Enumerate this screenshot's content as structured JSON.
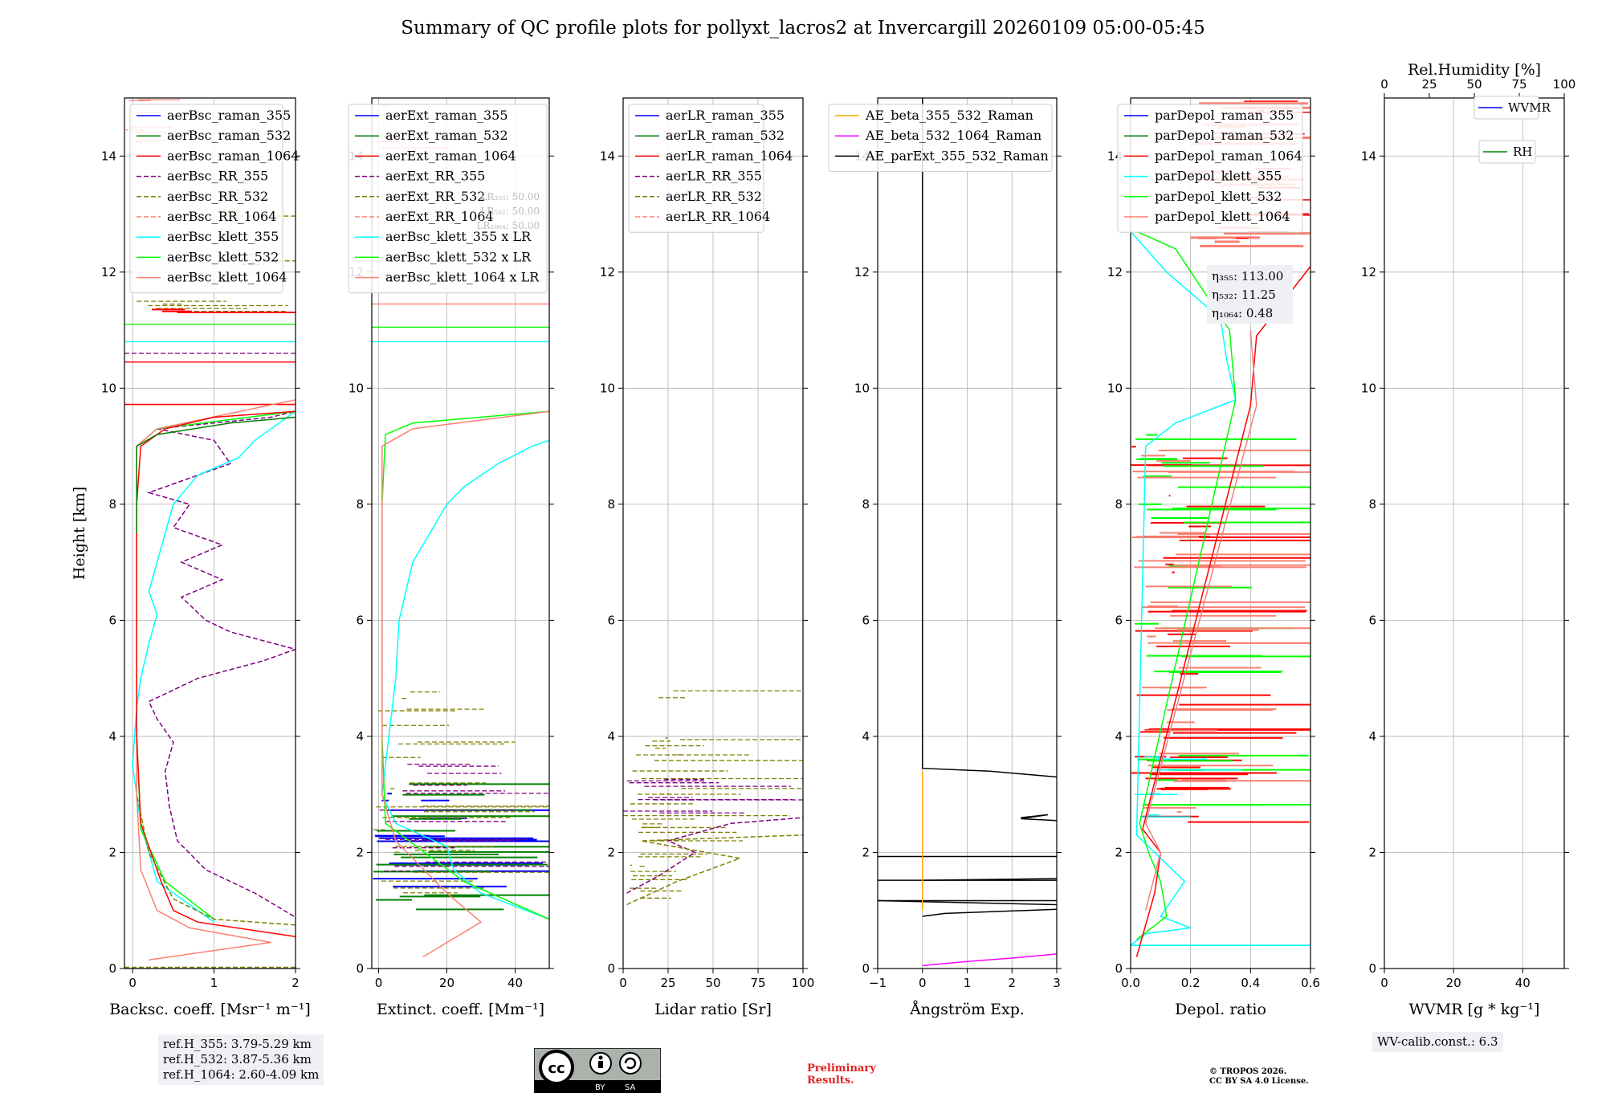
{
  "title": "Summary of QC profile plots for pollyxt_lacros2 at Invercargill 20260109 05:00-05:45",
  "colors": {
    "blue": "#0000ff",
    "green": "#008000",
    "red": "#ff0000",
    "purple": "#800080",
    "olive": "#808000",
    "salmon": "#fa8072",
    "cyan": "#00ffff",
    "lime": "#00ff00",
    "lightcoral": "#f08080",
    "orange": "#ffa500",
    "magenta": "#ff00ff",
    "black": "#000000"
  },
  "chart_data": [
    {
      "type": "line",
      "id": "bsc",
      "ylabel": "Height [km]",
      "xlabel": "Backsc. coeff. [Msr⁻¹ m⁻¹]",
      "xlim": [
        -0.1,
        2
      ],
      "ylim": [
        0,
        15
      ],
      "xticks": [
        "0",
        "1",
        "2"
      ],
      "yticks": [
        "0",
        "2",
        "4",
        "6",
        "8",
        "10",
        "12",
        "14"
      ],
      "legend": [
        "aerBsc_raman_355",
        "aerBsc_raman_532",
        "aerBsc_raman_1064",
        "aerBsc_RR_355",
        "aerBsc_RR_532",
        "aerBsc_RR_1064",
        "aerBsc_klett_355",
        "aerBsc_klett_532",
        "aerBsc_klett_1064"
      ],
      "series": [
        {
          "name": "aerBsc_RR_355",
          "color": "purple",
          "dash": true,
          "points": [
            [
              1.98,
              0.9
            ],
            [
              1.5,
              1.3
            ],
            [
              0.9,
              1.7
            ],
            [
              0.55,
              2.2
            ],
            [
              0.45,
              2.8
            ],
            [
              0.4,
              3.4
            ],
            [
              0.5,
              3.9
            ],
            [
              0.3,
              4.3
            ],
            [
              0.2,
              4.6
            ],
            [
              0.8,
              5
            ],
            [
              1.6,
              5.3
            ],
            [
              2,
              5.5
            ],
            [
              1.2,
              5.8
            ],
            [
              0.9,
              6
            ],
            [
              0.6,
              6.4
            ],
            [
              1.1,
              6.7
            ],
            [
              0.6,
              7
            ],
            [
              1.1,
              7.3
            ],
            [
              0.5,
              7.6
            ],
            [
              0.7,
              8
            ],
            [
              0.2,
              8.2
            ],
            [
              1.2,
              8.7
            ],
            [
              1.0,
              9.1
            ],
            [
              0.3,
              9.3
            ],
            [
              1.7,
              9.5
            ],
            [
              2,
              9.6
            ]
          ]
        },
        {
          "name": "aerBsc_klett_355",
          "color": "cyan",
          "points": [
            [
              1.0,
              0.8
            ],
            [
              0.3,
              1.5
            ],
            [
              0.1,
              2.5
            ],
            [
              0.0,
              3.5
            ],
            [
              0.05,
              4.5
            ],
            [
              0.1,
              5.0
            ],
            [
              0.2,
              5.6
            ],
            [
              0.3,
              6.1
            ],
            [
              0.2,
              6.5
            ],
            [
              0.3,
              7
            ],
            [
              0.4,
              7.5
            ],
            [
              0.5,
              8
            ],
            [
              0.8,
              8.5
            ],
            [
              1.3,
              8.8
            ],
            [
              1.5,
              9.1
            ],
            [
              1.8,
              9.4
            ],
            [
              2,
              9.6
            ]
          ]
        },
        {
          "name": "aerBsc_klett_532",
          "color": "lime",
          "points": [
            [
              1.0,
              0.85
            ],
            [
              0.4,
              1.5
            ],
            [
              0.1,
              2.4
            ],
            [
              0.05,
              4
            ],
            [
              0.05,
              7
            ],
            [
              0.05,
              9
            ],
            [
              0.3,
              9.3
            ],
            [
              2,
              9.6
            ]
          ]
        },
        {
          "name": "aerBsc_klett_1064",
          "color": "salmon",
          "points": [
            [
              0.2,
              0.15
            ],
            [
              1.7,
              0.45
            ],
            [
              0.7,
              0.7
            ],
            [
              0.3,
              1.0
            ],
            [
              0.1,
              1.7
            ],
            [
              0.05,
              3
            ],
            [
              0.05,
              9
            ],
            [
              0.3,
              9.3
            ],
            [
              2,
              9.8
            ]
          ]
        },
        {
          "name": "aerBsc_raman_1064",
          "color": "red",
          "points": [
            [
              2,
              0.55
            ],
            [
              0.8,
              0.8
            ],
            [
              0.5,
              1.0
            ],
            [
              0.35,
              1.5
            ],
            [
              0.1,
              2.5
            ],
            [
              0.05,
              4
            ],
            [
              0.05,
              8
            ],
            [
              0.1,
              9
            ],
            [
              0.4,
              9.3
            ],
            [
              1.0,
              9.5
            ],
            [
              2,
              9.6
            ]
          ]
        },
        {
          "name": "aerBsc_raman_532",
          "color": "green",
          "points": [
            [
              0.05,
              7.5
            ],
            [
              0.05,
              9
            ],
            [
              0.3,
              9.2
            ],
            [
              1.2,
              9.4
            ],
            [
              2,
              9.5
            ]
          ]
        },
        {
          "name": "aerBsc_RR_532",
          "color": "olive",
          "dash": true,
          "points": [
            [
              2,
              0.75
            ],
            [
              1.0,
              0.85
            ],
            [
              0.5,
              1.2
            ],
            [
              0.2,
              2
            ],
            [
              0.05,
              3
            ]
          ]
        }
      ]
    },
    {
      "type": "line",
      "id": "ext",
      "xlabel": "Extinct. coeff. [Mm⁻¹]",
      "xlim": [
        -2,
        50
      ],
      "ylim": [
        0,
        15
      ],
      "xticks": [
        "0",
        "20",
        "40"
      ],
      "yticks": [
        "0",
        "2",
        "4",
        "6",
        "8",
        "10",
        "12",
        "14"
      ],
      "legend": [
        "aerExt_raman_355",
        "aerExt_raman_532",
        "aerExt_raman_1064",
        "aerExt_RR_355",
        "aerExt_RR_532",
        "aerExt_RR_1064",
        "aerBsc_klett_355 x LR",
        "aerBsc_klett_532 x LR",
        "aerBsc_klett_1064 x LR"
      ],
      "lr_values": [
        "LR₃₅₅: 50.00",
        "LR₅₃₂: 50.00",
        "LR₁₀₆₄: 50.00"
      ],
      "series": [
        {
          "name": "aerBsc_klett_355 x LR",
          "color": "cyan",
          "points": [
            [
              50,
              0.85
            ],
            [
              30,
              1.3
            ],
            [
              22,
              1.7
            ],
            [
              20,
              2.1
            ],
            [
              5,
              2.5
            ],
            [
              1,
              3
            ],
            [
              3,
              4
            ],
            [
              5,
              5
            ],
            [
              6,
              6
            ],
            [
              10,
              7
            ],
            [
              15,
              7.5
            ],
            [
              20,
              8
            ],
            [
              25,
              8.3
            ],
            [
              35,
              8.7
            ],
            [
              45,
              9
            ],
            [
              50,
              9.1
            ]
          ]
        },
        {
          "name": "aerBsc_klett_532 x LR",
          "color": "lime",
          "points": [
            [
              50,
              0.85
            ],
            [
              25,
              1.5
            ],
            [
              2,
              2.5
            ],
            [
              1,
              4
            ],
            [
              1,
              8
            ],
            [
              2,
              9.2
            ],
            [
              10,
              9.4
            ],
            [
              50,
              9.6
            ]
          ]
        },
        {
          "name": "aerBsc_klett_1064 x LR",
          "color": "salmon",
          "points": [
            [
              13,
              0.2
            ],
            [
              30,
              0.8
            ],
            [
              20,
              1.3
            ],
            [
              5,
              2.2
            ],
            [
              1,
              3
            ],
            [
              1,
              9
            ],
            [
              10,
              9.3
            ],
            [
              50,
              9.6
            ]
          ]
        }
      ]
    },
    {
      "type": "line",
      "id": "lr",
      "xlabel": "Lidar ratio [Sr]",
      "xlim": [
        0,
        100
      ],
      "ylim": [
        0,
        15
      ],
      "xticks": [
        "0",
        "25",
        "50",
        "75",
        "100"
      ],
      "yticks": [
        "0",
        "2",
        "4",
        "6",
        "8",
        "10",
        "12",
        "14"
      ],
      "legend": [
        "aerLR_raman_355",
        "aerLR_raman_532",
        "aerLR_raman_1064",
        "aerLR_RR_355",
        "aerLR_RR_532",
        "aerLR_RR_1064"
      ],
      "series": [
        {
          "name": "aerLR_RR_355",
          "color": "purple",
          "dash": true,
          "points": [
            [
              2,
              1.3
            ],
            [
              20,
              1.6
            ],
            [
              40,
              2.0
            ],
            [
              25,
              2.2
            ],
            [
              60,
              2.5
            ],
            [
              100,
              2.6
            ]
          ]
        },
        {
          "name": "aerLR_RR_532",
          "color": "olive",
          "dash": true,
          "points": [
            [
              2,
              1.1
            ],
            [
              30,
              1.5
            ],
            [
              65,
              1.9
            ],
            [
              10,
              2.2
            ],
            [
              100,
              2.3
            ]
          ]
        }
      ]
    },
    {
      "type": "line",
      "id": "ae",
      "xlabel": "Ångström Exp.",
      "xlim": [
        -1,
        3
      ],
      "ylim": [
        0,
        15
      ],
      "xticks": [
        "−1",
        "0",
        "1",
        "2",
        "3"
      ],
      "yticks": [
        "0",
        "2",
        "4",
        "6",
        "8",
        "10",
        "12",
        "14"
      ],
      "legend": [
        "AE_beta_355_532_Raman",
        "AE_beta_532_1064_Raman",
        "AE_parExt_355_532_Raman"
      ],
      "series": [
        {
          "name": "AE_beta_355_532_Raman",
          "color": "orange",
          "points": [
            [
              0,
              1.0
            ],
            [
              0,
              3.4
            ]
          ]
        },
        {
          "name": "AE_beta_532_1064_Raman",
          "color": "magenta",
          "points": [
            [
              0,
              0.05
            ],
            [
              1,
              0.12
            ],
            [
              2,
              0.18
            ],
            [
              3,
              0.25
            ]
          ]
        },
        {
          "name": "AE_parExt_355_532_Raman",
          "color": "black",
          "points": [
            [
              0,
              15
            ],
            [
              0,
              3.45
            ],
            [
              1.5,
              3.4
            ],
            [
              3,
              3.3
            ]
          ]
        }
      ]
    },
    {
      "type": "line",
      "id": "depol",
      "xlabel": "Depol. ratio",
      "xlim": [
        0,
        0.6
      ],
      "ylim": [
        0,
        15
      ],
      "xticks": [
        "0.0",
        "0.2",
        "0.4",
        "0.6"
      ],
      "yticks": [
        "0",
        "2",
        "4",
        "6",
        "8",
        "10",
        "12",
        "14"
      ],
      "legend": [
        "parDepol_raman_355",
        "parDepol_raman_532",
        "parDepol_raman_1064",
        "parDepol_klett_355",
        "parDepol_klett_532",
        "parDepol_klett_1064"
      ],
      "eta": [
        "η₃₅₅: 113.00",
        "η₅₃₂: 11.25",
        "η₁₀₆₄: 0.48"
      ],
      "series": [
        {
          "name": "parDepol_klett_355",
          "color": "cyan",
          "points": [
            [
              0.6,
              0.4
            ],
            [
              0.0,
              0.4
            ],
            [
              0.05,
              0.6
            ],
            [
              0.2,
              0.7
            ],
            [
              0.1,
              0.9
            ],
            [
              0.18,
              1.5
            ],
            [
              0.1,
              1.9
            ],
            [
              0.02,
              2.3
            ],
            [
              0.05,
              9
            ],
            [
              0.15,
              9.4
            ],
            [
              0.35,
              9.8
            ],
            [
              0.32,
              10.5
            ],
            [
              0.3,
              11.2
            ],
            [
              0.12,
              12
            ],
            [
              0.0,
              12.7
            ]
          ]
        },
        {
          "name": "parDepol_klett_532",
          "color": "lime",
          "points": [
            [
              0.02,
              0.5
            ],
            [
              0.12,
              0.9
            ],
            [
              0.1,
              1.5
            ],
            [
              0.06,
              2.0
            ],
            [
              0.03,
              2.5
            ],
            [
              0.35,
              9.8
            ],
            [
              0.33,
              11
            ],
            [
              0.15,
              12.4
            ],
            [
              0.02,
              12.7
            ]
          ]
        },
        {
          "name": "parDepol_raman_1064",
          "color": "red",
          "points": [
            [
              0.02,
              0.2
            ],
            [
              0.08,
              1.3
            ],
            [
              0.1,
              2.0
            ],
            [
              0.04,
              2.4
            ],
            [
              0.4,
              9.7
            ],
            [
              0.42,
              10.9
            ],
            [
              0.6,
              12.1
            ]
          ]
        },
        {
          "name": "parDepol_klett_1064",
          "color": "lightcoral",
          "points": [
            [
              0.05,
              1.0
            ],
            [
              0.1,
              2.0
            ],
            [
              0.05,
              2.5
            ],
            [
              0.42,
              9.7
            ],
            [
              0.4,
              11
            ]
          ]
        }
      ]
    },
    {
      "type": "line",
      "id": "wv",
      "xlabel": "WVMR [g * kg⁻¹]",
      "top_xlabel": "Rel.Humidity [%]",
      "xlim": [
        0,
        52
      ],
      "ylim": [
        0,
        15
      ],
      "top_xlim": [
        0,
        100
      ],
      "xticks": [
        "0",
        "20",
        "40"
      ],
      "top_xticks": [
        "0",
        "25",
        "50",
        "75",
        "100"
      ],
      "yticks": [
        "0",
        "2",
        "4",
        "6",
        "8",
        "10",
        "12",
        "14"
      ],
      "legend": [
        "WVMR",
        "RH"
      ],
      "series": []
    }
  ],
  "notes": {
    "ref_heights": [
      "ref.H_355: 3.79-5.29 km",
      "ref.H_532: 3.87-5.36 km",
      "ref.H_1064: 2.60-4.09 km"
    ],
    "wv_calib": "WV-calib.const.: 6.3",
    "preliminary": [
      "Preliminary",
      "Results."
    ],
    "copyright": [
      "© TROPOS 2026.",
      "CC BY SA 4.0 License."
    ],
    "license_badge": "CC BY SA"
  }
}
